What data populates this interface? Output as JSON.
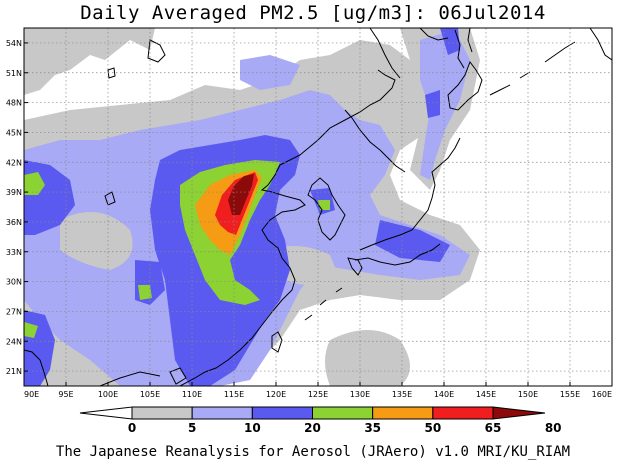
{
  "title": "Daily Averaged PM2.5 [ug/m3]: 06Jul2014",
  "footer": "The Japanese Reanalysis for Aerosol (JRAero) v1.0 MRI/KU_RIAM",
  "map": {
    "lon_range": [
      90,
      160
    ],
    "lat_range": [
      19.5,
      55.5
    ],
    "lon_ticks": [
      "90E",
      "95E",
      "100E",
      "105E",
      "110E",
      "115E",
      "120E",
      "125E",
      "130E",
      "135E",
      "140E",
      "145E",
      "150E",
      "155E",
      "160E"
    ],
    "lat_ticks": [
      "21N",
      "24N",
      "27N",
      "30N",
      "33N",
      "36N",
      "39N",
      "42N",
      "45N",
      "48N",
      "51N",
      "54N"
    ],
    "gridlines": true,
    "coastline_color": "#000000"
  },
  "colorbar": {
    "labels": [
      "0",
      "5",
      "10",
      "20",
      "35",
      "50",
      "65",
      "80"
    ],
    "colors": [
      "#ffffff",
      "#c8c8c8",
      "#a8aaf5",
      "#5a5af0",
      "#8cd232",
      "#f59b14",
      "#f01e1e",
      "#8c0a0a"
    ]
  },
  "fields": {
    "gray_5_10": "#c8c8c8",
    "lavender_10_20": "#a8aaf5",
    "blue_20_35": "#5a5af0",
    "green_35_50": "#8cd232",
    "orange_50_65": "#f59b14",
    "red_65_80": "#f01e1e",
    "darkred_80": "#8c0a0a"
  }
}
